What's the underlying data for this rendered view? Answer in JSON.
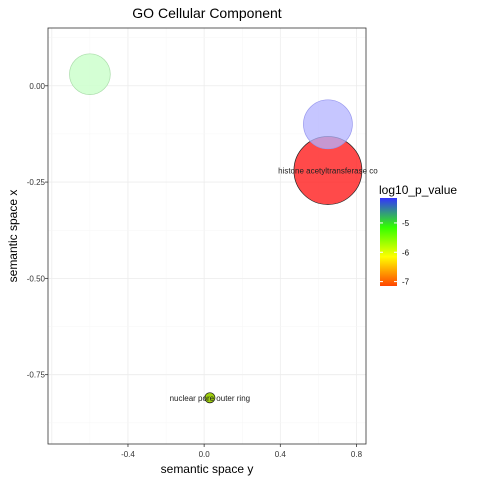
{
  "chart_data": {
    "type": "scatter",
    "title": "GO Cellular Component",
    "xlabel": "semantic space y",
    "ylabel": "semantic space x",
    "xlim": [
      -0.82,
      0.85
    ],
    "ylim": [
      -0.93,
      0.15
    ],
    "xticks": [
      -0.4,
      0.0,
      0.4,
      0.8
    ],
    "xtick_labels": [
      "-0.4",
      "0.0",
      "0.4",
      "0.8"
    ],
    "yticks": [
      0.0,
      -0.25,
      -0.5,
      -0.75
    ],
    "ytick_labels": [
      "0.00",
      "-0.25",
      "-0.50",
      "-0.75"
    ],
    "grid": true,
    "legend_position": "right",
    "points": [
      {
        "x": -0.6,
        "y": 0.03,
        "log10_p_value": -4.5,
        "color": "#ccffcc",
        "stroke": "#aaddaa",
        "opacity": 0.85,
        "size": 0.6,
        "label": ""
      },
      {
        "x": 0.65,
        "y": -0.1,
        "log10_p_value": -4.6,
        "color": "#b3b3ff",
        "stroke": "#9999ee",
        "opacity": 0.75,
        "size": 0.72,
        "label": ""
      },
      {
        "x": 0.65,
        "y": -0.22,
        "log10_p_value": -7.0,
        "color": "#ff2a2a",
        "stroke": "#222222",
        "opacity": 0.85,
        "size": 1.0,
        "label": "histone acetyltransferase co"
      },
      {
        "x": 0.03,
        "y": -0.81,
        "log10_p_value": -5.5,
        "color": "#99cc00",
        "stroke": "#222222",
        "opacity": 0.95,
        "size": 0.15,
        "label": "nuclear pore outer ring"
      }
    ],
    "legend": {
      "title": "log10_p_value",
      "min": -7.15,
      "max": -4.15,
      "ticks": [
        -5,
        -6,
        -7
      ],
      "tick_labels": [
        "-5",
        "-6",
        "-7"
      ],
      "colors_top_to_bottom": [
        "#3333ff",
        "#33ff00",
        "#ffff00",
        "#ff4400"
      ]
    }
  }
}
